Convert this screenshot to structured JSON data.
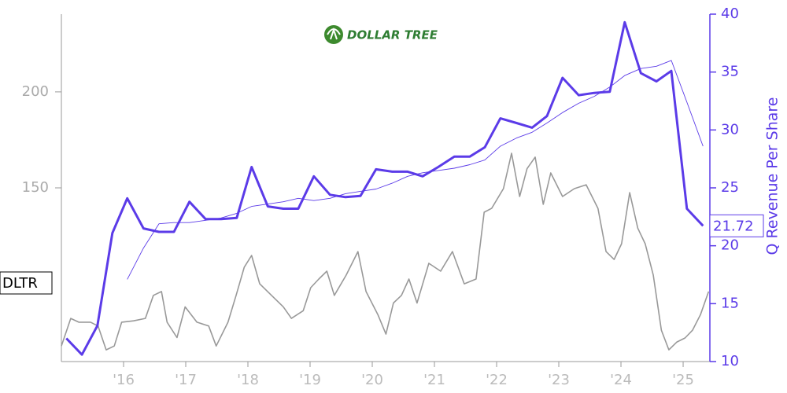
{
  "chart_data": {
    "type": "line",
    "title": "DOLLAR TREE",
    "ticker": "DLTR",
    "y2label": "Q Revenue Per Share",
    "xlim": [
      2015,
      2025.43
    ],
    "xticks": [
      {
        "value": 2016,
        "label": "'16"
      },
      {
        "value": 2017,
        "label": "'17"
      },
      {
        "value": 2018,
        "label": "'18"
      },
      {
        "value": 2019,
        "label": "'19"
      },
      {
        "value": 2020,
        "label": "'20"
      },
      {
        "value": 2021,
        "label": "'21"
      },
      {
        "value": 2022,
        "label": "'22"
      },
      {
        "value": 2023,
        "label": "'23"
      },
      {
        "value": 2024,
        "label": "'24"
      },
      {
        "value": 2025,
        "label": "'25"
      }
    ],
    "ylim": [
      59.5,
      240.5
    ],
    "yticks": [
      150,
      200
    ],
    "y2lim": [
      10,
      40
    ],
    "y2ticks": [
      10,
      15,
      20,
      25,
      30,
      35,
      40
    ],
    "series": [
      {
        "axis": "y",
        "color": "#999999",
        "width": 1.6,
        "x": [
          2015,
          2015.15,
          2015.28,
          2015.47,
          2015.59,
          2015.72,
          2015.85,
          2015.97,
          2016.16,
          2016.35,
          2016.48,
          2016.61,
          2016.7,
          2016.86,
          2016.99,
          2017.18,
          2017.37,
          2017.49,
          2017.68,
          2017.81,
          2017.94,
          2018.06,
          2018.19,
          2018.38,
          2018.57,
          2018.7,
          2018.89,
          2019.01,
          2019.14,
          2019.27,
          2019.39,
          2019.58,
          2019.77,
          2019.9,
          2020.09,
          2020.22,
          2020.34,
          2020.47,
          2020.59,
          2020.72,
          2020.91,
          2021.1,
          2021.29,
          2021.48,
          2021.67,
          2021.8,
          2021.92,
          2022.11,
          2022.24,
          2022.37,
          2022.49,
          2022.62,
          2022.75,
          2022.87,
          2023.06,
          2023.25,
          2023.44,
          2023.63,
          2023.76,
          2023.89,
          2024.01,
          2024.14,
          2024.27,
          2024.39,
          2024.52,
          2024.65,
          2024.77,
          2024.9,
          2025.03,
          2025.15,
          2025.28,
          2025.41
        ],
        "values": [
          67.6,
          82,
          80,
          80,
          78,
          65.6,
          67.6,
          80,
          80.7,
          82,
          94,
          96,
          80,
          72,
          88,
          80,
          78,
          67.6,
          80,
          94,
          108.6,
          114.8,
          100,
          94,
          88,
          82,
          86,
          98,
          102.5,
          106.6,
          94,
          104.5,
          116.8,
          96,
          84,
          73.8,
          90,
          94,
          102.5,
          90,
          110.7,
          106.6,
          116.8,
          100,
          102.5,
          137.3,
          139.3,
          149.6,
          168,
          145.5,
          160,
          166,
          141.4,
          157.8,
          145.5,
          149.6,
          151.6,
          139.3,
          116.8,
          112.7,
          120.9,
          147.5,
          129,
          120.9,
          104.5,
          75.8,
          65.6,
          69.7,
          71.8,
          75.8,
          84,
          96
        ]
      },
      {
        "axis": "y2",
        "color": "#5b3be8",
        "width": 3,
        "x": [
          2015.08,
          2015.33,
          2015.58,
          2015.82,
          2016.06,
          2016.32,
          2016.57,
          2016.81,
          2017.06,
          2017.32,
          2017.57,
          2017.82,
          2018.06,
          2018.32,
          2018.57,
          2018.81,
          2019.06,
          2019.32,
          2019.57,
          2019.81,
          2020.06,
          2020.32,
          2020.57,
          2020.81,
          2021.06,
          2021.32,
          2021.57,
          2021.81,
          2022.06,
          2022.32,
          2022.57,
          2022.81,
          2023.06,
          2023.32,
          2023.57,
          2023.82,
          2024.06,
          2024.32,
          2024.57,
          2024.81,
          2025.06,
          2025.32
        ],
        "values": [
          12.0,
          10.6,
          13.1,
          21.1,
          24.1,
          21.5,
          21.2,
          21.2,
          23.8,
          22.3,
          22.3,
          22.4,
          26.8,
          23.4,
          23.2,
          23.2,
          26.0,
          24.4,
          24.2,
          24.3,
          26.6,
          26.4,
          26.4,
          26.0,
          26.8,
          27.7,
          27.7,
          28.5,
          31.0,
          30.6,
          30.2,
          31.2,
          34.5,
          33.0,
          33.2,
          33.3,
          39.3,
          34.9,
          34.2,
          35.1,
          23.2,
          21.72
        ]
      },
      {
        "axis": "y2",
        "color": "#5b3be8",
        "width": 0.9,
        "x": [
          2015.08,
          2015.33,
          2015.58,
          2015.82,
          2016.06,
          2016.32,
          2016.57,
          2016.81,
          2017.06,
          2017.32,
          2017.57,
          2017.82,
          2018.06,
          2018.32,
          2018.57,
          2018.81,
          2019.06,
          2019.32,
          2019.57,
          2019.81,
          2020.06,
          2020.32,
          2020.57,
          2020.81,
          2021.06,
          2021.32,
          2021.57,
          2021.81,
          2022.06,
          2022.32,
          2022.57,
          2022.81,
          2023.06,
          2023.32,
          2023.57,
          2023.82,
          2024.06,
          2024.32,
          2024.57,
          2024.81,
          2025.06,
          2025.32
        ],
        "values": [
          null,
          null,
          null,
          null,
          17.1,
          19.8,
          21.9,
          22.0,
          22.0,
          22.2,
          22.4,
          22.8,
          23.4,
          23.6,
          23.8,
          24.1,
          23.9,
          24.1,
          24.5,
          24.7,
          24.9,
          25.4,
          26.0,
          26.3,
          26.5,
          26.7,
          27.0,
          27.4,
          28.6,
          29.3,
          29.8,
          30.6,
          31.5,
          32.3,
          32.9,
          33.7,
          34.7,
          35.3,
          35.5,
          36.0,
          32.4,
          28.6
        ]
      }
    ]
  }
}
